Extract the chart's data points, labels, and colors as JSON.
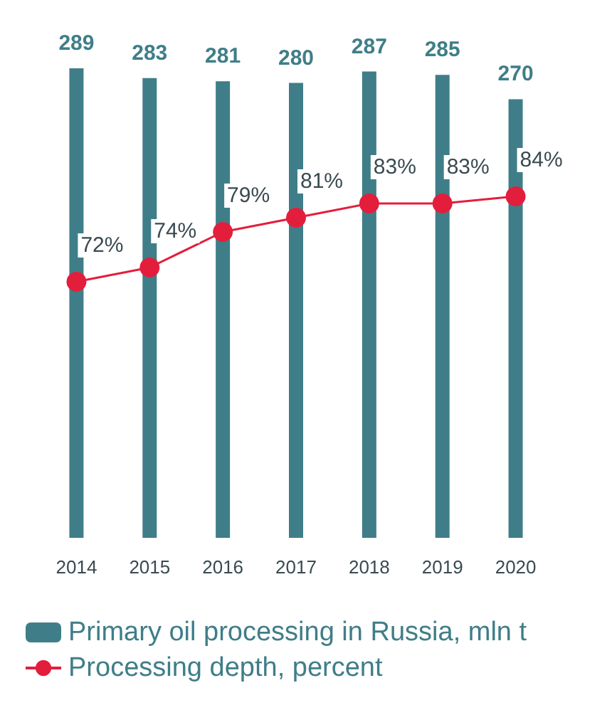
{
  "chart_data": {
    "type": "bar",
    "categories": [
      "2014",
      "2015",
      "2016",
      "2017",
      "2018",
      "2019",
      "2020"
    ],
    "series": [
      {
        "name": "Primary oil processing in Russia, mln t",
        "color": "#3f7e88",
        "values": [
          289,
          283,
          281,
          280,
          287,
          285,
          270
        ],
        "data_labels": true
      },
      {
        "name": "Processing depth, percent",
        "type": "line",
        "axis": "y2",
        "color": "#e31e3c",
        "values": [
          72,
          74,
          79,
          81,
          83,
          83,
          84
        ],
        "value_labels": [
          "72%",
          "74%",
          "79%",
          "81%",
          "83%",
          "83%",
          "84%"
        ]
      }
    ],
    "legend": "bottom",
    "grid": false,
    "marker": "circle",
    "line_style": "solid",
    "tick_labels": "x"
  }
}
